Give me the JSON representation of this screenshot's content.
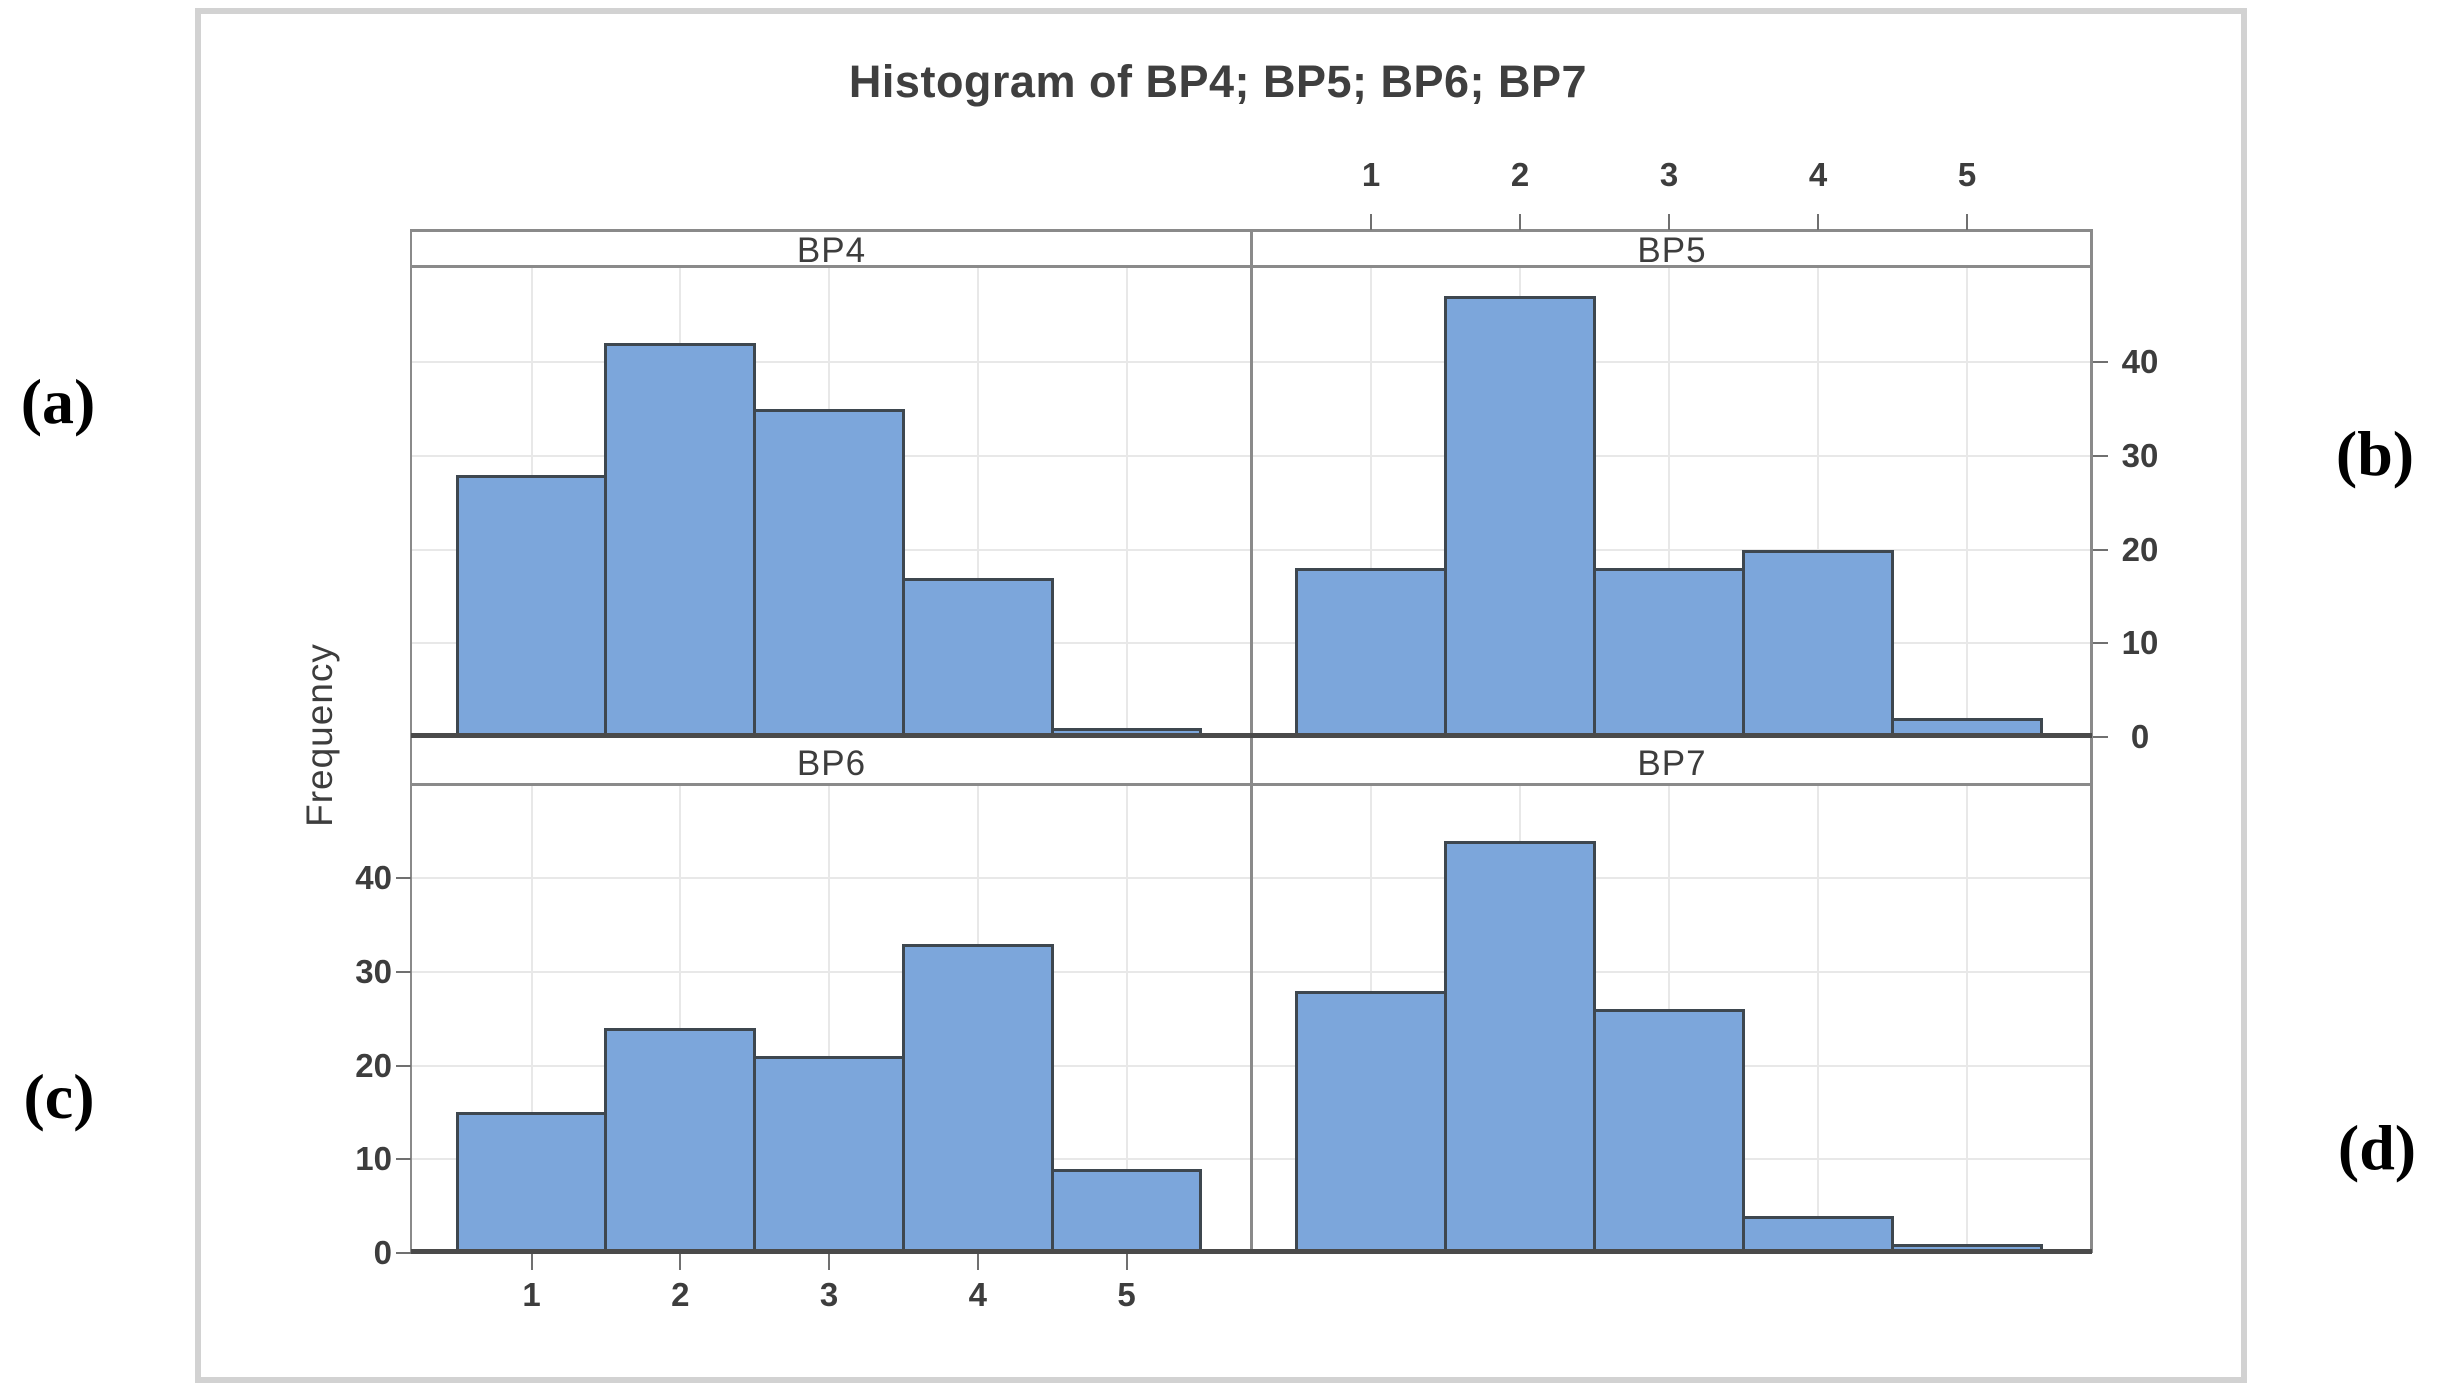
{
  "title": "Histogram of BP4; BP5; BP6; BP7",
  "y_axis_label": "Frequency",
  "corner_labels": {
    "top_left": "(a)",
    "top_right": "(b)",
    "bottom_left": "(c)",
    "bottom_right": "(d)"
  },
  "chart_data": {
    "type": "bar",
    "subtype": "histogram-2x2-panels",
    "title": "Histogram of BP4; BP5; BP6; BP7",
    "ylabel": "Frequency",
    "xlabel": "",
    "categories": [
      "1",
      "2",
      "3",
      "4",
      "5"
    ],
    "series": [
      {
        "name": "BP4",
        "values": [
          28,
          42,
          35,
          17,
          1
        ]
      },
      {
        "name": "BP5",
        "values": [
          18,
          47,
          18,
          20,
          2
        ]
      },
      {
        "name": "BP6",
        "values": [
          15,
          24,
          21,
          33,
          9
        ]
      },
      {
        "name": "BP7",
        "values": [
          28,
          44,
          26,
          4,
          1
        ]
      }
    ],
    "panel_order": [
      "BP4 top-left",
      "BP5 top-right",
      "BP6 bottom-left",
      "BP7 bottom-right"
    ],
    "ylim": [
      0,
      50
    ],
    "y_ticks": [
      0,
      10,
      20,
      30,
      40
    ],
    "x_ticks": [
      "1",
      "2",
      "3",
      "4",
      "5"
    ],
    "grid": true,
    "axis_layout": "x tick labels above top-right panel and below bottom-left panel; y tick labels right of top-right panel and left of bottom-left panel",
    "colors": {
      "bar_fill": "#7CA6DB",
      "bar_edge": "#3E474F",
      "panel_border": "#8A8A8A",
      "baseline": "#4A4A4A",
      "gridline": "#E8E8E8",
      "tick_mark": "#707070",
      "text": "#3D3D3D",
      "frame": "#D2D2D2"
    }
  }
}
